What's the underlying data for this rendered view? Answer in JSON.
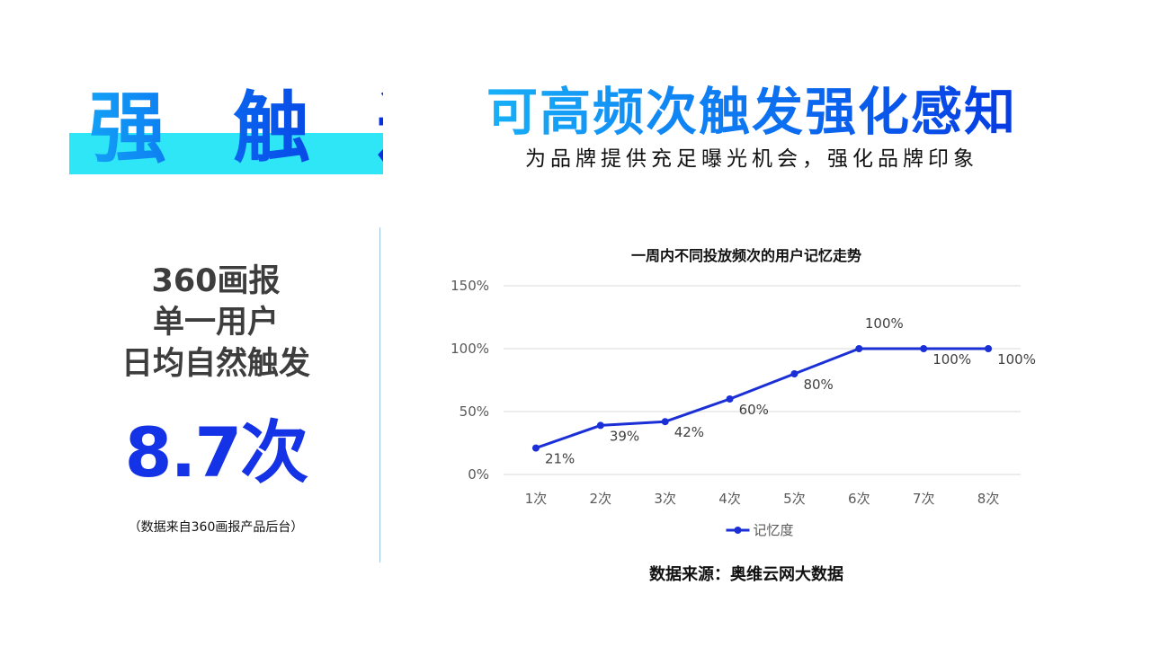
{
  "hero": {
    "title": "强 触 达",
    "highlight_color": "#2ee6f5"
  },
  "headline": {
    "title": "可高频次触发强化感知",
    "subtitle": "为品牌提供充足曝光机会，强化品牌印象"
  },
  "stat": {
    "lines": [
      "360画报",
      "单一用户",
      "日均自然触发"
    ],
    "value": "8.7次",
    "note": "（数据来自360画报产品后台）",
    "value_color": "#1432e6"
  },
  "source": "数据来源：奥维云网大数据",
  "chart_data": {
    "type": "line",
    "title": "一周内不同投放频次的用户记忆走势",
    "categories": [
      "1次",
      "2次",
      "3次",
      "4次",
      "5次",
      "6次",
      "7次",
      "8次"
    ],
    "series": [
      {
        "name": "记忆度",
        "values": [
          0.21,
          0.39,
          0.42,
          0.6,
          0.8,
          1.0,
          1.0,
          1.0
        ],
        "labels": [
          "21%",
          "39%",
          "42%",
          "60%",
          "80%",
          "100%",
          "100%",
          "100%"
        ],
        "color": "#1a2fd6"
      }
    ],
    "yticks": [
      "0%",
      "50%",
      "100%",
      "150%"
    ],
    "ylim": [
      0,
      1.5
    ],
    "grid": true,
    "legend": "bottom"
  }
}
